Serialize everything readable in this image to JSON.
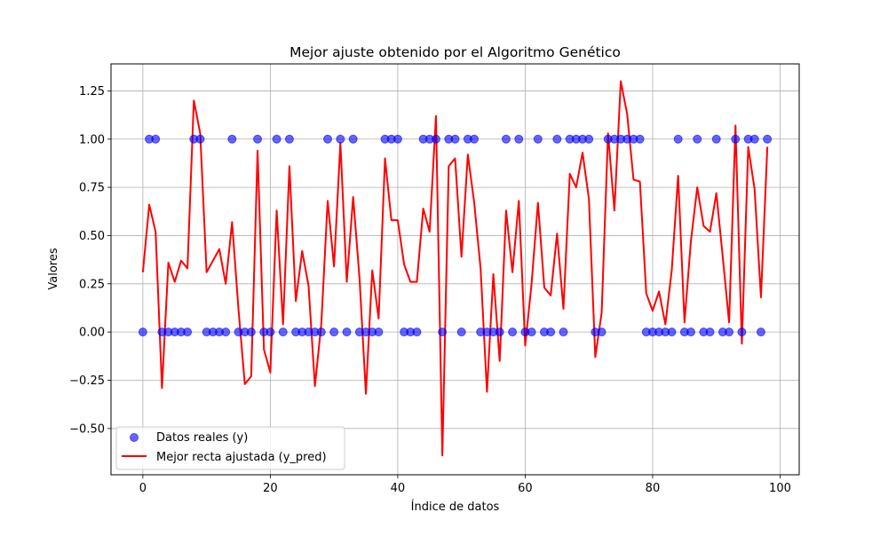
{
  "chart_data": {
    "type": "scatter",
    "title": "Mejor ajuste obtenido por el Algoritmo Genético",
    "xlabel": "Índice de datos",
    "ylabel": "Valores",
    "xlim": [
      -5,
      103
    ],
    "ylim": [
      -0.74,
      1.39
    ],
    "x_ticks": [
      0,
      20,
      40,
      60,
      80,
      100
    ],
    "y_ticks": [
      -0.5,
      -0.25,
      0.0,
      0.25,
      0.5,
      0.75,
      1.0,
      1.25
    ],
    "grid": true,
    "legend_position": "lower-left",
    "series": [
      {
        "name": "Datos reales (y)",
        "kind": "scatter",
        "color": "#0000ff",
        "x": [
          0,
          1,
          2,
          3,
          4,
          5,
          6,
          7,
          8,
          9,
          10,
          11,
          12,
          13,
          14,
          15,
          16,
          17,
          18,
          19,
          20,
          21,
          22,
          23,
          24,
          25,
          26,
          27,
          28,
          29,
          30,
          31,
          32,
          33,
          34,
          35,
          36,
          37,
          38,
          39,
          40,
          41,
          42,
          43,
          44,
          45,
          46,
          47,
          48,
          49,
          50,
          51,
          52,
          53,
          54,
          55,
          56,
          57,
          58,
          59,
          60,
          61,
          62,
          63,
          64,
          65,
          66,
          67,
          68,
          69,
          70,
          71,
          72,
          73,
          74,
          75,
          76,
          77,
          78,
          79,
          80,
          81,
          82,
          83,
          84,
          85,
          86,
          87,
          88,
          89,
          90,
          91,
          92,
          93,
          94,
          95,
          96,
          97,
          98
        ],
        "y": [
          0,
          1,
          1,
          0,
          0,
          0,
          0,
          0,
          1,
          1,
          0,
          0,
          0,
          0,
          1,
          0,
          0,
          0,
          1,
          0,
          0,
          1,
          0,
          1,
          0,
          0,
          0,
          0,
          0,
          1,
          0,
          1,
          0,
          1,
          0,
          0,
          0,
          0,
          1,
          1,
          1,
          0,
          0,
          0,
          1,
          1,
          1,
          0,
          1,
          1,
          0,
          1,
          1,
          0,
          0,
          0,
          0,
          1,
          0,
          1,
          0,
          0,
          1,
          0,
          0,
          1,
          0,
          1,
          1,
          1,
          1,
          0,
          0,
          1,
          1,
          1,
          1,
          1,
          1,
          0,
          0,
          0,
          0,
          0,
          1,
          0,
          0,
          1,
          0,
          0,
          1,
          0,
          0,
          1,
          0,
          1,
          1,
          0,
          1
        ]
      },
      {
        "name": "Mejor recta ajustada (y_pred)",
        "kind": "line",
        "color": "#ff0000",
        "x": [
          0,
          1,
          2,
          3,
          4,
          5,
          6,
          7,
          8,
          9,
          10,
          11,
          12,
          13,
          14,
          15,
          16,
          17,
          18,
          19,
          20,
          21,
          22,
          23,
          24,
          25,
          26,
          27,
          28,
          29,
          30,
          31,
          32,
          33,
          34,
          35,
          36,
          37,
          38,
          39,
          40,
          41,
          42,
          43,
          44,
          45,
          46,
          47,
          48,
          49,
          50,
          51,
          52,
          53,
          54,
          55,
          56,
          57,
          58,
          59,
          60,
          61,
          62,
          63,
          64,
          65,
          66,
          67,
          68,
          69,
          70,
          71,
          72,
          73,
          74,
          75,
          76,
          77,
          78,
          79,
          80,
          81,
          82,
          83,
          84,
          85,
          86,
          87,
          88,
          89,
          90,
          91,
          92,
          93,
          94,
          95,
          96,
          97,
          98
        ],
        "y": [
          0.31,
          0.66,
          0.52,
          -0.29,
          0.36,
          0.26,
          0.37,
          0.33,
          1.2,
          1.03,
          0.31,
          0.37,
          0.43,
          0.25,
          0.57,
          0.12,
          -0.27,
          -0.23,
          0.94,
          -0.09,
          -0.21,
          0.63,
          0.04,
          0.86,
          0.16,
          0.42,
          0.24,
          -0.28,
          0.04,
          0.68,
          0.34,
          0.98,
          0.26,
          0.7,
          0.28,
          -0.32,
          0.32,
          0.07,
          0.9,
          0.58,
          0.58,
          0.35,
          0.26,
          0.26,
          0.64,
          0.52,
          1.12,
          -0.64,
          0.86,
          0.9,
          0.39,
          0.92,
          0.67,
          0.33,
          -0.31,
          0.3,
          -0.15,
          0.63,
          0.31,
          0.68,
          -0.07,
          0.25,
          0.67,
          0.23,
          0.19,
          0.51,
          0.12,
          0.82,
          0.75,
          0.93,
          0.69,
          -0.13,
          0.1,
          1.03,
          0.63,
          1.3,
          1.13,
          0.79,
          0.78,
          0.2,
          0.11,
          0.21,
          0.04,
          0.32,
          0.81,
          0.05,
          0.47,
          0.75,
          0.55,
          0.52,
          0.72,
          0.39,
          0.05,
          1.07,
          -0.06,
          0.96,
          0.74,
          0.18,
          0.96
        ]
      }
    ]
  }
}
